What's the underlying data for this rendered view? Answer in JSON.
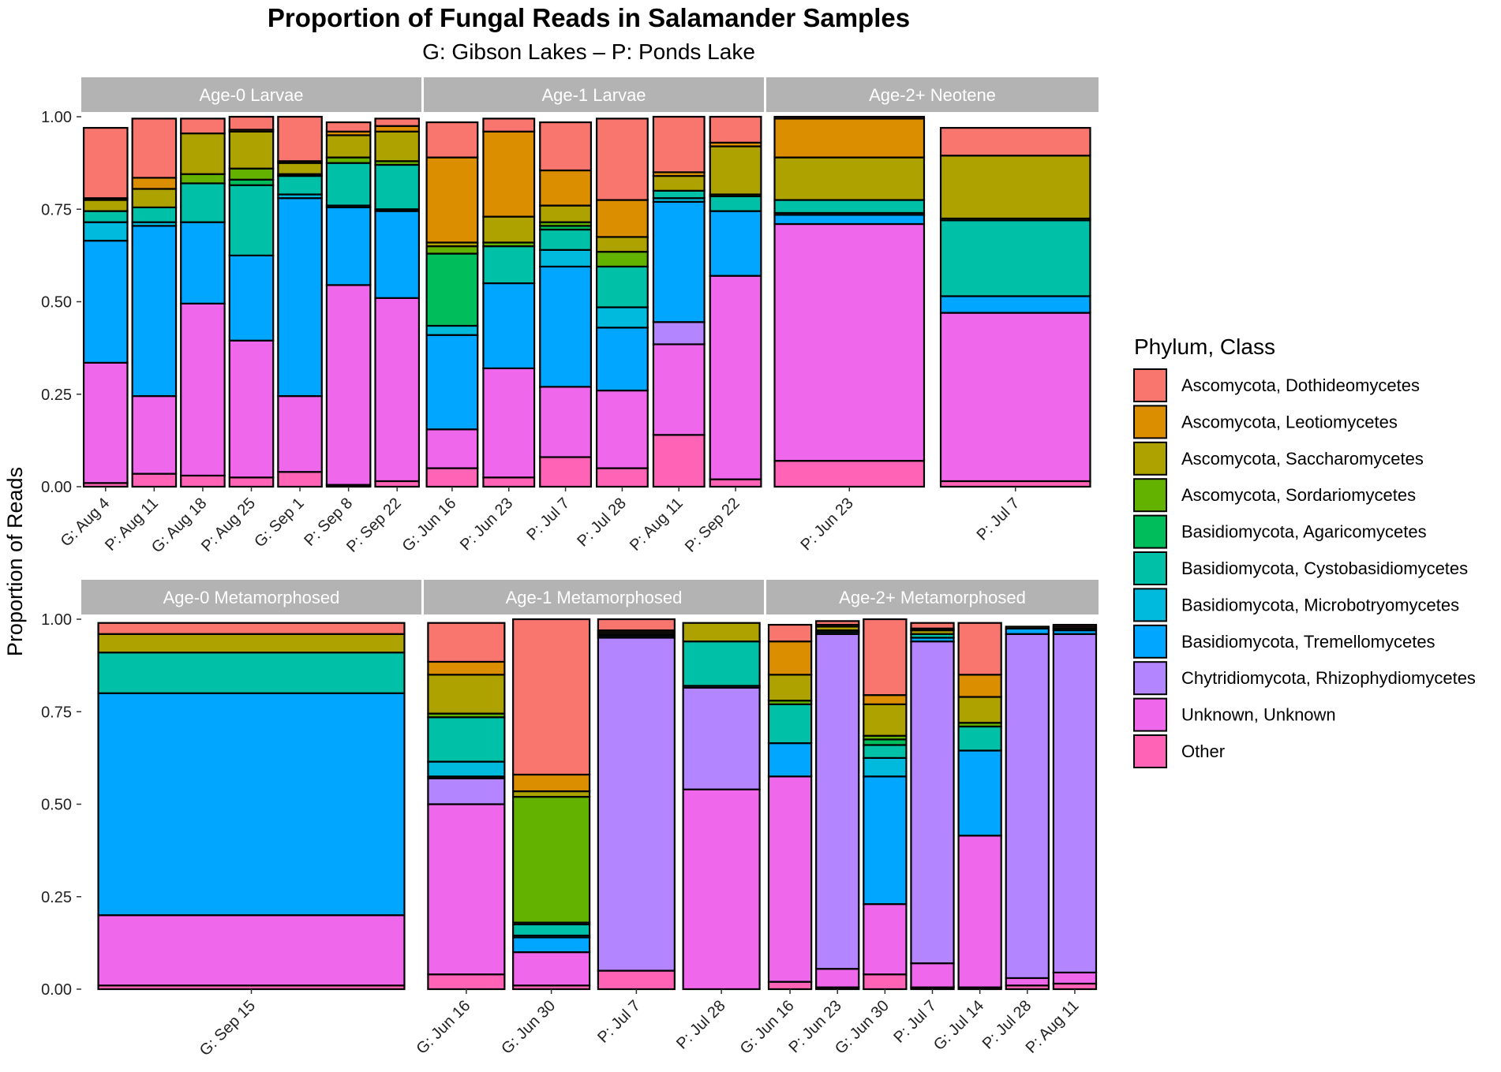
{
  "chart_data": {
    "type": "bar",
    "stacked": true,
    "title": "Proportion of Fungal Reads in Salamander Samples",
    "subtitle": "G: Gibson Lakes – P: Ponds Lake",
    "ylabel": "Proportion of Reads",
    "ylim": [
      0,
      1
    ],
    "yticks": [
      "0.00",
      "0.25",
      "0.50",
      "0.75",
      "1.00"
    ],
    "legend_title": "Phylum, Class",
    "legend_position": "right",
    "series": [
      {
        "name": "Ascomycota, Dothideomycetes",
        "color": "#F8766D"
      },
      {
        "name": "Ascomycota, Leotiomycetes",
        "color": "#DB8E00"
      },
      {
        "name": "Ascomycota, Saccharomycetes",
        "color": "#AEA200"
      },
      {
        "name": "Ascomycota, Sordariomycetes",
        "color": "#64B200"
      },
      {
        "name": "Basidiomycota, Agaricomycetes",
        "color": "#00BD5C"
      },
      {
        "name": "Basidiomycota, Cystobasidiomycetes",
        "color": "#00C1A7"
      },
      {
        "name": "Basidiomycota, Microbotryomycetes",
        "color": "#00BADE"
      },
      {
        "name": "Basidiomycota, Tremellomycetes",
        "color": "#00A6FF"
      },
      {
        "name": "Chytridiomycota, Rhizophydiomycetes",
        "color": "#B385FF"
      },
      {
        "name": "Unknown, Unknown",
        "color": "#EF67EB"
      },
      {
        "name": "Other",
        "color": "#FF63B6"
      }
    ],
    "facets": [
      {
        "label": "Age-0 Larvae",
        "categories": [
          "G: Aug 4",
          "P: Aug 11",
          "G: Aug 18",
          "P: Aug 25",
          "G: Sep 1",
          "P: Sep 8",
          "P: Sep 22"
        ],
        "values": [
          [
            0.19,
            0.005,
            0.03,
            0,
            0,
            0.03,
            0.05,
            0.33,
            0,
            0.325,
            0.01
          ],
          [
            0.16,
            0.03,
            0.05,
            0,
            0,
            0.04,
            0.01,
            0.46,
            0,
            0.21,
            0.035
          ],
          [
            0.04,
            0,
            0.11,
            0.025,
            0,
            0.105,
            0,
            0.22,
            0,
            0.465,
            0.03
          ],
          [
            0.035,
            0.005,
            0.1,
            0.03,
            0.015,
            0.19,
            0,
            0.23,
            0,
            0.37,
            0.025
          ],
          [
            0.12,
            0.005,
            0.03,
            0.005,
            0,
            0.05,
            0.01,
            0.535,
            0,
            0.205,
            0.04
          ],
          [
            0.025,
            0.01,
            0.06,
            0.015,
            0,
            0.115,
            0.005,
            0.21,
            0,
            0.54,
            0.005
          ],
          [
            0.02,
            0.015,
            0.08,
            0.01,
            0,
            0.12,
            0.005,
            0.235,
            0,
            0.495,
            0.015
          ]
        ]
      },
      {
        "label": "Age-1 Larvae",
        "categories": [
          "G: Jun 16",
          "P: Jun 23",
          "P: Jul 7",
          "P: Jul 28",
          "P: Aug 11",
          "P: Sep 22"
        ],
        "values": [
          [
            0.095,
            0.23,
            0.01,
            0.02,
            0.195,
            0,
            0.025,
            0.255,
            0,
            0.105,
            0.05
          ],
          [
            0.035,
            0.23,
            0.07,
            0.01,
            0,
            0.1,
            0,
            0.23,
            0,
            0.295,
            0.025
          ],
          [
            0.13,
            0.095,
            0.045,
            0.01,
            0.01,
            0.055,
            0.045,
            0.325,
            0,
            0.19,
            0.08
          ],
          [
            0.22,
            0.1,
            0.04,
            0.04,
            0,
            0.11,
            0.055,
            0.17,
            0,
            0.21,
            0.05
          ],
          [
            0.15,
            0.01,
            0.04,
            0,
            0,
            0.02,
            0.01,
            0.325,
            0.06,
            0.245,
            0.14
          ],
          [
            0.07,
            0.01,
            0.13,
            0.005,
            0,
            0.04,
            0,
            0.175,
            0,
            0.55,
            0.02
          ]
        ]
      },
      {
        "label": "Age-2+ Neotene",
        "categories": [
          "P: Jun 23",
          "P: Jul 7"
        ],
        "values": [
          [
            0.005,
            0.105,
            0.115,
            0,
            0,
            0.035,
            0.005,
            0.025,
            0,
            0.64,
            0.07
          ],
          [
            0.075,
            0,
            0.17,
            0.005,
            0,
            0.205,
            0,
            0.045,
            0,
            0.455,
            0.015
          ]
        ]
      },
      {
        "label": "Age-0 Metamorphosed",
        "categories": [
          "G: Sep 15"
        ],
        "values": [
          [
            0.03,
            0,
            0.05,
            0,
            0,
            0.11,
            0,
            0.6,
            0,
            0.19,
            0.01
          ]
        ]
      },
      {
        "label": "Age-1 Metamorphosed",
        "categories": [
          "G: Jun 16",
          "G: Jun 30",
          "P: Jul 7",
          "P: Jul 28"
        ],
        "values": [
          [
            0.105,
            0.035,
            0.105,
            0.01,
            0,
            0.12,
            0.04,
            0.005,
            0.07,
            0.46,
            0.04
          ],
          [
            0.42,
            0.045,
            0.015,
            0.34,
            0.005,
            0.03,
            0.005,
            0.04,
            0,
            0.09,
            0.01
          ],
          [
            0.03,
            0.005,
            0.005,
            0,
            0,
            0.005,
            0,
            0.005,
            0.9,
            0,
            0.05
          ],
          [
            0,
            0,
            0.05,
            0,
            0,
            0.12,
            0,
            0.005,
            0.275,
            0.54,
            0
          ]
        ]
      },
      {
        "label": "Age-2+ Metamorphosed",
        "categories": [
          "G: Jun 16",
          "P: Jun 23",
          "G: Jun 30",
          "P: Jul 7",
          "G: Jul 14",
          "P: Jul 28",
          "P: Aug 11"
        ],
        "values": [
          [
            0.045,
            0.09,
            0.07,
            0.01,
            0,
            0.105,
            0,
            0.09,
            0,
            0.555,
            0.02
          ],
          [
            0.01,
            0.005,
            0.01,
            0,
            0,
            0.005,
            0,
            0.005,
            0.905,
            0.05,
            0.005
          ],
          [
            0.205,
            0.025,
            0.085,
            0.01,
            0.015,
            0.035,
            0.05,
            0.345,
            0,
            0.19,
            0.04
          ],
          [
            0.015,
            0.005,
            0.01,
            0,
            0,
            0.01,
            0,
            0.01,
            0.87,
            0.065,
            0.005
          ],
          [
            0.14,
            0.06,
            0.07,
            0.01,
            0,
            0.065,
            0,
            0.23,
            0,
            0.41,
            0.005
          ],
          [
            0,
            0,
            0.005,
            0,
            0,
            0,
            0,
            0.015,
            0.93,
            0.02,
            0.01
          ],
          [
            0.005,
            0,
            0.005,
            0,
            0,
            0.005,
            0,
            0.01,
            0.915,
            0.03,
            0.015
          ]
        ]
      }
    ]
  }
}
